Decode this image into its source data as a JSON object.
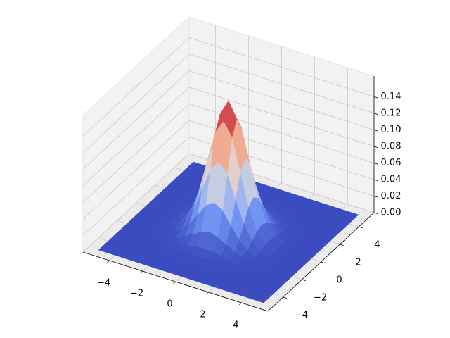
{
  "chart_data": {
    "type": "surface",
    "x": [
      -5,
      -4.5,
      -4,
      -3.5,
      -3,
      -2.5,
      -2,
      -1.5,
      -1,
      -0.5,
      0,
      0.5,
      1,
      1.5,
      2,
      2.5,
      3,
      3.5,
      4,
      4.5,
      5
    ],
    "y": [
      -5,
      -4.5,
      -4,
      -3.5,
      -3,
      -2.5,
      -2,
      -1.5,
      -1,
      -0.5,
      0,
      0.5,
      1,
      1.5,
      2,
      2.5,
      3,
      3.5,
      4,
      4.5,
      5
    ],
    "z": [
      [
        0,
        0,
        0,
        0,
        0,
        0,
        0,
        0,
        0,
        0,
        0,
        0,
        0,
        0,
        0,
        0,
        0,
        0,
        0,
        0,
        0
      ],
      [
        0,
        0,
        0,
        0,
        0,
        0,
        0,
        0,
        0,
        0,
        0,
        0,
        0,
        0,
        0,
        0,
        0,
        0,
        0,
        0,
        0
      ],
      [
        0,
        0,
        0,
        0,
        0,
        0,
        0,
        0,
        0,
        0,
        0,
        0,
        0,
        0,
        0,
        0,
        0,
        0,
        0,
        0,
        0
      ],
      [
        0,
        0,
        0,
        0,
        0,
        0,
        0,
        0,
        0,
        0,
        0,
        0,
        0,
        0,
        0,
        0,
        0,
        0,
        0,
        0,
        0
      ],
      [
        0,
        0,
        0,
        0,
        0,
        0,
        0,
        0.001,
        0.001,
        0.002,
        0.002,
        0.002,
        0.001,
        0.001,
        0,
        0,
        0,
        0,
        0,
        0,
        0
      ],
      [
        0,
        0,
        0,
        0,
        0,
        0,
        0.001,
        0.002,
        0.004,
        0.006,
        0.007,
        0.006,
        0.004,
        0.002,
        0.001,
        0,
        0,
        0,
        0,
        0,
        0
      ],
      [
        0,
        0,
        0,
        0,
        0,
        0.001,
        0.003,
        0.007,
        0.013,
        0.019,
        0.022,
        0.019,
        0.013,
        0.007,
        0.003,
        0.001,
        0,
        0,
        0,
        0,
        0
      ],
      [
        0,
        0,
        0,
        0,
        0.001,
        0.002,
        0.007,
        0.017,
        0.031,
        0.046,
        0.052,
        0.046,
        0.031,
        0.017,
        0.007,
        0.002,
        0.001,
        0,
        0,
        0,
        0
      ],
      [
        0,
        0,
        0,
        0,
        0.001,
        0.004,
        0.013,
        0.031,
        0.058,
        0.085,
        0.096,
        0.085,
        0.058,
        0.031,
        0.013,
        0.004,
        0.001,
        0,
        0,
        0,
        0
      ],
      [
        0,
        0,
        0,
        0,
        0.002,
        0.006,
        0.019,
        0.046,
        0.085,
        0.124,
        0.14,
        0.124,
        0.085,
        0.046,
        0.019,
        0.006,
        0.002,
        0,
        0,
        0,
        0
      ],
      [
        0,
        0,
        0,
        0,
        0.002,
        0.007,
        0.022,
        0.052,
        0.096,
        0.14,
        0.159,
        0.14,
        0.096,
        0.052,
        0.022,
        0.007,
        0.002,
        0,
        0,
        0,
        0
      ],
      [
        0,
        0,
        0,
        0,
        0.002,
        0.006,
        0.019,
        0.046,
        0.085,
        0.124,
        0.14,
        0.124,
        0.085,
        0.046,
        0.019,
        0.006,
        0.002,
        0,
        0,
        0,
        0
      ],
      [
        0,
        0,
        0,
        0,
        0.001,
        0.004,
        0.013,
        0.031,
        0.058,
        0.085,
        0.096,
        0.085,
        0.058,
        0.031,
        0.013,
        0.004,
        0.001,
        0,
        0,
        0,
        0
      ],
      [
        0,
        0,
        0,
        0,
        0.001,
        0.002,
        0.007,
        0.017,
        0.031,
        0.046,
        0.052,
        0.046,
        0.031,
        0.017,
        0.007,
        0.002,
        0.001,
        0,
        0,
        0,
        0
      ],
      [
        0,
        0,
        0,
        0,
        0,
        0.001,
        0.003,
        0.007,
        0.013,
        0.019,
        0.022,
        0.019,
        0.013,
        0.007,
        0.003,
        0.001,
        0,
        0,
        0,
        0,
        0
      ],
      [
        0,
        0,
        0,
        0,
        0,
        0,
        0.001,
        0.002,
        0.004,
        0.006,
        0.007,
        0.006,
        0.004,
        0.002,
        0.001,
        0,
        0,
        0,
        0,
        0,
        0
      ],
      [
        0,
        0,
        0,
        0,
        0,
        0,
        0,
        0.001,
        0.001,
        0.002,
        0.002,
        0.002,
        0.001,
        0.001,
        0,
        0,
        0,
        0,
        0,
        0,
        0
      ],
      [
        0,
        0,
        0,
        0,
        0,
        0,
        0,
        0,
        0,
        0,
        0,
        0,
        0,
        0,
        0,
        0,
        0,
        0,
        0,
        0,
        0
      ],
      [
        0,
        0,
        0,
        0,
        0,
        0,
        0,
        0,
        0,
        0,
        0,
        0,
        0,
        0,
        0,
        0,
        0,
        0,
        0,
        0,
        0
      ],
      [
        0,
        0,
        0,
        0,
        0,
        0,
        0,
        0,
        0,
        0,
        0,
        0,
        0,
        0,
        0,
        0,
        0,
        0,
        0,
        0,
        0
      ],
      [
        0,
        0,
        0,
        0,
        0,
        0,
        0,
        0,
        0,
        0,
        0,
        0,
        0,
        0,
        0,
        0,
        0,
        0,
        0,
        0,
        0
      ]
    ],
    "colormap": [
      "#3b4cc0",
      "#7b9ff9",
      "#dddcdc",
      "#f5a081",
      "#b40426"
    ],
    "xlim": [
      -5.6,
      5.6
    ],
    "ylim": [
      -5.6,
      5.6
    ],
    "zlim": [
      0,
      0.165
    ],
    "xticks": [
      {
        "value": -4,
        "label": "−4"
      },
      {
        "value": -2,
        "label": "−2"
      },
      0,
      2,
      4
    ],
    "yticks": [
      {
        "value": -4,
        "label": "−4"
      },
      {
        "value": -2,
        "label": "−2"
      },
      0,
      2,
      4
    ],
    "zticks": [
      {
        "value": 0,
        "label": "0.00"
      },
      {
        "value": 0.02,
        "label": "0.02"
      },
      {
        "value": 0.04,
        "label": "0.04"
      },
      {
        "value": 0.06,
        "label": "0.06"
      },
      {
        "value": 0.08,
        "label": "0.08"
      },
      {
        "value": 0.1,
        "label": "0.10"
      },
      {
        "value": 0.12,
        "label": "0.12"
      },
      {
        "value": 0.14,
        "label": "0.14"
      }
    ],
    "grid": true
  }
}
